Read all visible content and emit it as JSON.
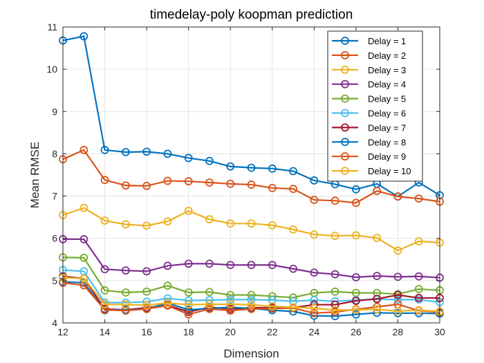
{
  "chart_data": {
    "type": "line",
    "title": "timedelay-poly koopman prediction",
    "xlabel": "Dimension",
    "ylabel": "Mean RMSE",
    "xlim": [
      12,
      30
    ],
    "ylim": [
      4,
      11
    ],
    "xticks": [
      12,
      14,
      16,
      18,
      20,
      22,
      24,
      26,
      28,
      30
    ],
    "yticks": [
      4,
      5,
      6,
      7,
      8,
      9,
      10,
      11
    ],
    "grid": true,
    "legend_position": "top-right",
    "x": [
      12,
      13,
      14,
      15,
      16,
      17,
      18,
      19,
      20,
      21,
      22,
      23,
      24,
      25,
      26,
      27,
      28,
      29,
      30
    ],
    "series": [
      {
        "name": "Delay = 1",
        "color": "#0072BD",
        "values": [
          10.68,
          10.78,
          8.09,
          8.04,
          8.05,
          8.0,
          7.9,
          7.83,
          7.7,
          7.67,
          7.65,
          7.59,
          7.37,
          7.28,
          7.16,
          7.29,
          6.99,
          7.32,
          7.02
        ]
      },
      {
        "name": "Delay = 2",
        "color": "#D95319",
        "values": [
          7.87,
          8.09,
          7.38,
          7.25,
          7.24,
          7.36,
          7.35,
          7.32,
          7.29,
          7.27,
          7.19,
          7.17,
          6.91,
          6.89,
          6.84,
          7.12,
          6.99,
          6.94,
          6.87
        ]
      },
      {
        "name": "Delay = 3",
        "color": "#EDB120",
        "values": [
          6.55,
          6.72,
          6.42,
          6.33,
          6.3,
          6.4,
          6.65,
          6.45,
          6.35,
          6.35,
          6.31,
          6.21,
          6.09,
          6.06,
          6.07,
          6.01,
          5.71,
          5.93,
          5.9
        ]
      },
      {
        "name": "Delay = 4",
        "color": "#7E2F8E",
        "values": [
          5.98,
          5.98,
          5.27,
          5.24,
          5.22,
          5.35,
          5.4,
          5.4,
          5.37,
          5.37,
          5.37,
          5.28,
          5.19,
          5.15,
          5.08,
          5.11,
          5.09,
          5.1,
          5.07
        ]
      },
      {
        "name": "Delay = 5",
        "color": "#77AC30",
        "values": [
          5.55,
          5.54,
          4.77,
          4.72,
          4.74,
          4.88,
          4.72,
          4.73,
          4.66,
          4.66,
          4.63,
          4.6,
          4.71,
          4.74,
          4.71,
          4.71,
          4.68,
          4.8,
          4.77
        ]
      },
      {
        "name": "Delay = 6",
        "color": "#4DBEEE",
        "values": [
          5.25,
          5.22,
          4.48,
          4.48,
          4.5,
          4.58,
          4.53,
          4.54,
          4.55,
          4.55,
          4.54,
          4.51,
          4.54,
          4.51,
          4.54,
          4.56,
          4.55,
          4.55,
          4.49
        ]
      },
      {
        "name": "Delay = 7",
        "color": "#A2142F",
        "values": [
          5.1,
          5.05,
          4.33,
          4.31,
          4.36,
          4.42,
          4.26,
          4.37,
          4.33,
          4.36,
          4.36,
          4.36,
          4.43,
          4.43,
          4.52,
          4.57,
          4.66,
          4.59,
          4.59
        ]
      },
      {
        "name": "Delay = 8",
        "color": "#0072BD",
        "values": [
          4.97,
          4.95,
          4.3,
          4.31,
          4.33,
          4.47,
          4.31,
          4.34,
          4.37,
          4.34,
          4.3,
          4.27,
          4.17,
          4.16,
          4.2,
          4.24,
          4.23,
          4.23,
          4.22
        ]
      },
      {
        "name": "Delay = 9",
        "color": "#D95319",
        "values": [
          4.95,
          4.89,
          4.31,
          4.29,
          4.33,
          4.41,
          4.2,
          4.33,
          4.29,
          4.33,
          4.34,
          4.35,
          4.23,
          4.26,
          4.32,
          4.38,
          4.44,
          4.29,
          4.25
        ]
      },
      {
        "name": "Delay = 10",
        "color": "#EDB120",
        "values": [
          5.07,
          5.05,
          4.44,
          4.43,
          4.42,
          4.47,
          4.43,
          4.44,
          4.44,
          4.43,
          4.39,
          4.37,
          4.35,
          4.3,
          4.31,
          4.32,
          4.28,
          4.3,
          4.27
        ]
      }
    ]
  }
}
